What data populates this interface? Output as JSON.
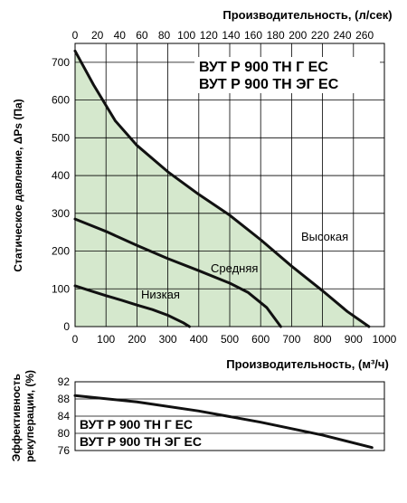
{
  "chart_data": [
    {
      "type": "line",
      "title_lines": [
        "ВУТ Р 900 ТН Г ЕС",
        "ВУТ Р 900 ТН ЭГ ЕС"
      ],
      "xlabel": "Производительность, (м³/ч)",
      "x2label": "Производительность, (л/сек)",
      "ylabel": "Статическое давление, ΔPs (Па)",
      "xlim": [
        0,
        1000
      ],
      "ylim": [
        0,
        750
      ],
      "x_ticks": [
        0,
        100,
        200,
        300,
        400,
        500,
        600,
        700,
        800,
        900,
        1000
      ],
      "y_ticks": [
        0,
        100,
        200,
        300,
        400,
        500,
        600,
        700
      ],
      "x2_ticks": [
        0,
        20,
        40,
        60,
        80,
        100,
        120,
        140,
        160,
        180,
        200,
        220,
        240,
        260
      ],
      "grid": true,
      "fill_color": "#d5e8cd",
      "series": [
        {
          "name": "Высокая",
          "x": [
            0,
            60,
            130,
            200,
            300,
            400,
            500,
            600,
            700,
            800,
            880,
            950
          ],
          "y": [
            730,
            640,
            545,
            480,
            410,
            350,
            295,
            230,
            160,
            95,
            40,
            0
          ]
        },
        {
          "name": "Средняя",
          "x": [
            0,
            100,
            200,
            300,
            400,
            500,
            560,
            620,
            665
          ],
          "y": [
            285,
            252,
            215,
            180,
            148,
            115,
            90,
            50,
            0
          ]
        },
        {
          "name": "Низкая",
          "x": [
            0,
            50,
            100,
            150,
            200,
            250,
            300,
            350,
            370
          ],
          "y": [
            108,
            95,
            82,
            70,
            57,
            45,
            30,
            10,
            0
          ]
        }
      ]
    },
    {
      "type": "line",
      "title_lines": [
        "ВУТ Р 900 ТН Г ЕС",
        "ВУТ Р 900 ТН ЭГ ЕС"
      ],
      "ylabel": "Эффективность рекуперации, (%)",
      "xlim": [
        0,
        1000
      ],
      "ylim": [
        76,
        92
      ],
      "y_ticks": [
        76,
        80,
        84,
        88,
        92
      ],
      "series": [
        {
          "x": [
            0,
            200,
            400,
            600,
            800,
            960
          ],
          "y": [
            88.8,
            87.3,
            85.2,
            82.6,
            79.6,
            76.7
          ]
        }
      ]
    }
  ]
}
